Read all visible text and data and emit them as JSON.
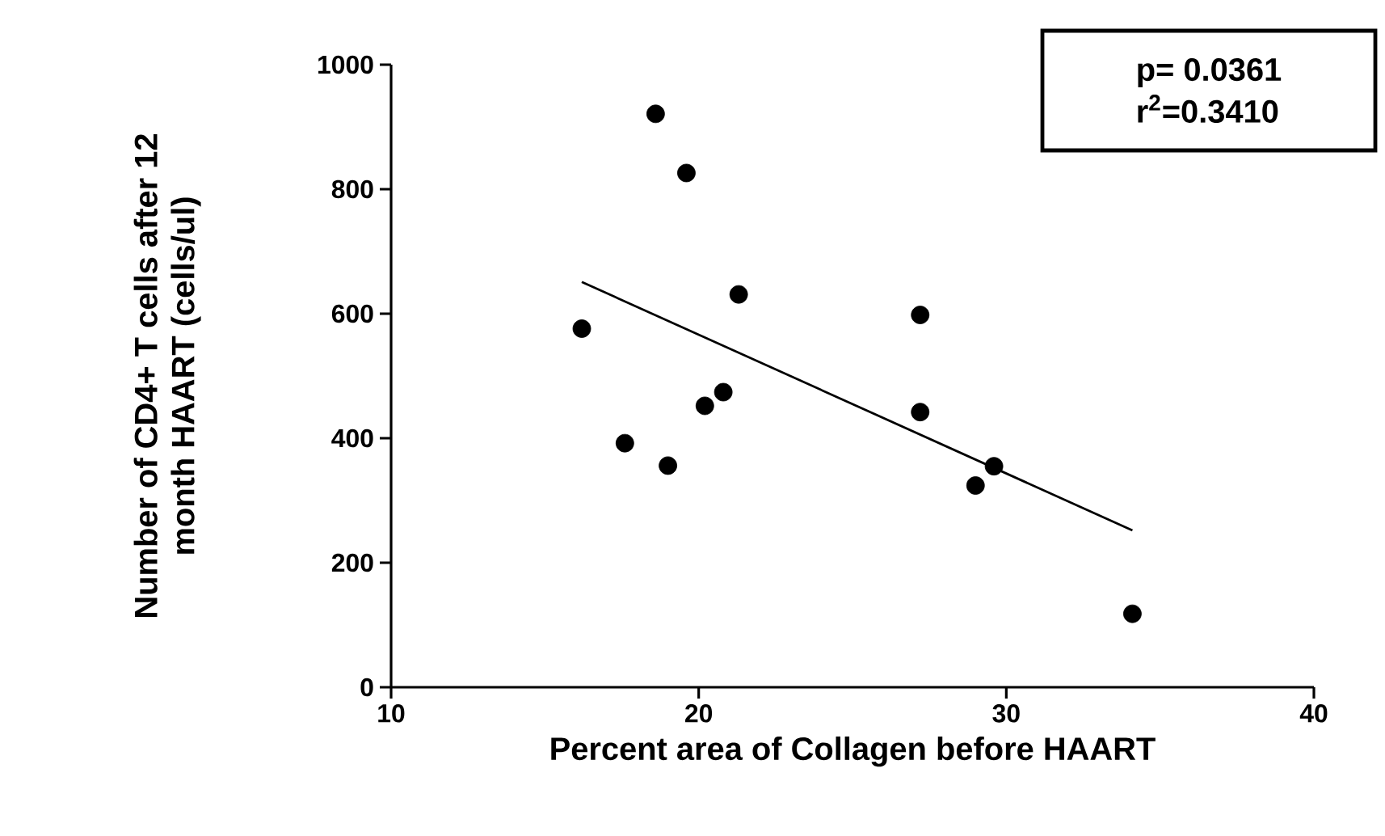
{
  "chart_data": {
    "type": "scatter",
    "xlabel": "Percent area of Collagen before HAART",
    "ylabel": "Number of CD4+  T cells after 12 month HAART (cells/ul)",
    "annotations": [
      "p= 0.0361",
      "r$^{2}$=0.3410"
    ],
    "series": [
      {
        "color": "#000000",
        "marker": "circle",
        "x": [
          16.2,
          18.6,
          19.6,
          21.3,
          17.6,
          19.0,
          20.2,
          20.8,
          27.2,
          27.2,
          29.0,
          29.6,
          34.1
        ],
        "values": [
          576,
          921,
          826,
          631,
          392,
          356,
          452,
          474,
          598,
          442,
          324,
          355,
          118
        ]
      },
      {
        "type": "line",
        "color": "#000000",
        "marker": "none",
        "line_style": "solid",
        "x": [
          16.2,
          34.1
        ],
        "values": [
          651,
          252
        ]
      }
    ],
    "xlim": [
      10,
      40
    ],
    "xticks": [
      10,
      20,
      30,
      40
    ],
    "ylim": [
      0,
      1000
    ],
    "yticks": [
      0,
      200,
      400,
      600,
      800,
      1000
    ],
    "grid": false
  }
}
